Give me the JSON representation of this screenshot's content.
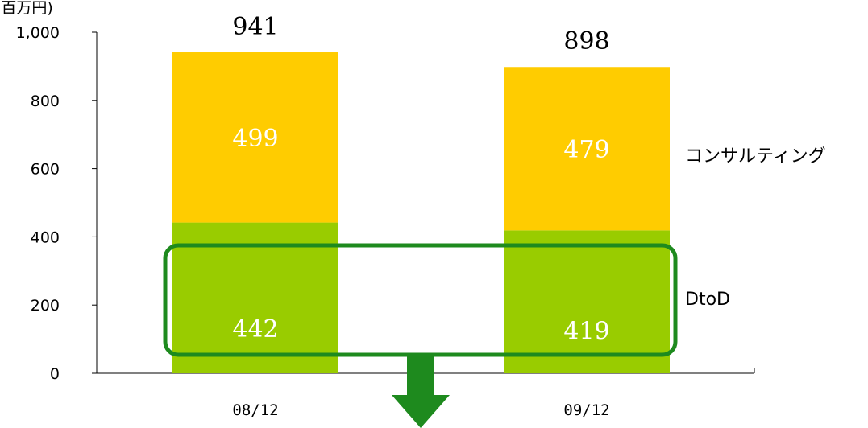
{
  "chart_data": {
    "type": "bar",
    "stacked": true,
    "categories": [
      "08/12",
      "09/12"
    ],
    "series": [
      {
        "name": "DtoD",
        "values": [
          442,
          419
        ],
        "color": "#99cc00"
      },
      {
        "name": "コンサルティング",
        "values": [
          499,
          479
        ],
        "color": "#ffcc00"
      }
    ],
    "totals": [
      941,
      898
    ],
    "ylim": [
      0,
      1000
    ],
    "yticks": [
      0,
      200,
      400,
      600,
      800,
      1000
    ],
    "ytick_labels": [
      "0",
      "200",
      "400",
      "600",
      "800",
      "1,000"
    ],
    "unit_label": "(百万円)",
    "legend_placement": "right",
    "highlight_color": "#1e8a1e",
    "arrow_color": "#1e8a1e"
  }
}
